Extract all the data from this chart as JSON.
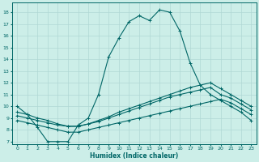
{
  "xlabel": "Humidex (Indice chaleur)",
  "bg_color": "#cceee8",
  "grid_color": "#b0d8d4",
  "line_color": "#006666",
  "xlim": [
    -0.5,
    23.5
  ],
  "ylim": [
    6.8,
    18.8
  ],
  "xticks": [
    0,
    1,
    2,
    3,
    4,
    5,
    6,
    7,
    8,
    9,
    10,
    11,
    12,
    13,
    14,
    15,
    16,
    17,
    18,
    19,
    20,
    21,
    22,
    23
  ],
  "yticks": [
    7,
    8,
    9,
    10,
    11,
    12,
    13,
    14,
    15,
    16,
    17,
    18
  ],
  "line1_x": [
    0,
    1,
    2,
    3,
    4,
    5,
    6,
    7,
    8,
    9,
    10,
    11,
    12,
    13,
    14,
    15,
    16,
    17,
    18,
    19,
    20,
    21,
    22,
    23
  ],
  "line1_y": [
    10.0,
    9.3,
    8.2,
    7.0,
    7.0,
    7.0,
    8.4,
    9.0,
    11.0,
    14.2,
    15.8,
    17.2,
    17.7,
    17.3,
    18.2,
    18.0,
    16.4,
    13.7,
    11.8,
    11.0,
    10.5,
    10.0,
    9.5,
    8.8
  ],
  "line2_x": [
    0,
    1,
    2,
    3,
    4,
    5,
    6,
    7,
    8,
    9,
    10,
    11,
    12,
    13,
    14,
    15,
    16,
    17,
    18,
    19,
    20,
    21,
    22,
    23
  ],
  "line2_y": [
    8.8,
    8.6,
    8.4,
    8.2,
    8.0,
    7.8,
    7.8,
    8.0,
    8.2,
    8.4,
    8.6,
    8.8,
    9.0,
    9.2,
    9.4,
    9.6,
    9.8,
    10.0,
    10.2,
    10.4,
    10.6,
    10.3,
    9.8,
    9.3
  ],
  "line3_x": [
    0,
    1,
    2,
    3,
    4,
    5,
    6,
    7,
    8,
    9,
    10,
    11,
    12,
    13,
    14,
    15,
    16,
    17,
    18,
    19,
    20,
    21,
    22,
    23
  ],
  "line3_y": [
    9.2,
    9.0,
    8.8,
    8.6,
    8.4,
    8.3,
    8.3,
    8.5,
    8.7,
    9.0,
    9.3,
    9.6,
    9.9,
    10.2,
    10.5,
    10.8,
    11.0,
    11.2,
    11.4,
    11.6,
    11.0,
    10.7,
    10.2,
    9.7
  ],
  "line4_x": [
    0,
    1,
    2,
    3,
    4,
    5,
    6,
    7,
    8,
    9,
    10,
    11,
    12,
    13,
    14,
    15,
    16,
    17,
    18,
    19,
    20,
    21,
    22,
    23
  ],
  "line4_y": [
    9.5,
    9.3,
    9.0,
    8.8,
    8.5,
    8.3,
    8.3,
    8.5,
    8.8,
    9.1,
    9.5,
    9.8,
    10.1,
    10.4,
    10.7,
    11.0,
    11.3,
    11.6,
    11.8,
    12.0,
    11.5,
    11.0,
    10.5,
    10.0
  ]
}
